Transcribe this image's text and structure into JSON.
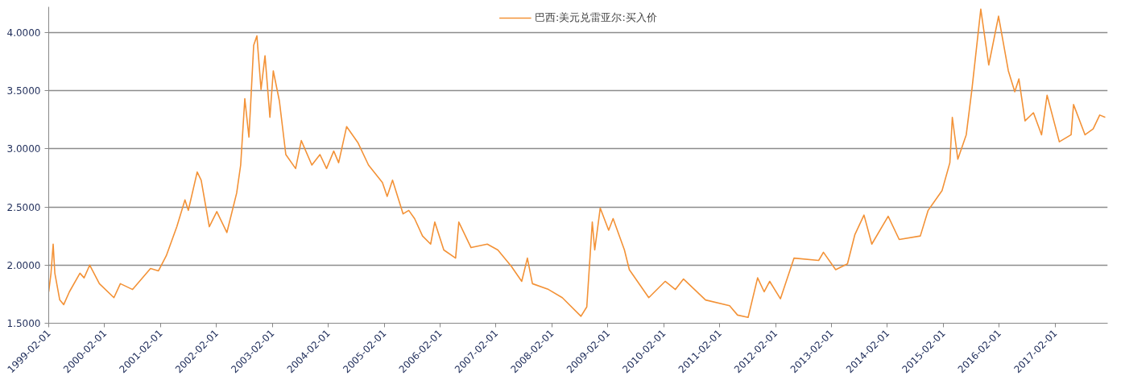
{
  "chart_data": {
    "type": "line",
    "x": [
      "1999-02-01",
      "1999-02-16",
      "1999-03-02",
      "1999-03-13",
      "1999-04-14",
      "1999-05-10",
      "1999-06-16",
      "1999-08-24",
      "1999-09-20",
      "1999-10-27",
      "1999-12-29",
      "2000-04-02",
      "2000-05-14",
      "2000-08-02",
      "2000-11-27",
      "2001-01-18",
      "2001-03-10",
      "2001-05-18",
      "2001-07-10",
      "2001-08-01",
      "2001-09-28",
      "2001-10-24",
      "2001-12-16",
      "2002-02-03",
      "2002-04-10",
      "2002-06-13",
      "2002-07-09",
      "2002-08-05",
      "2002-09-01",
      "2002-10-02",
      "2002-10-23",
      "2002-11-19",
      "2002-12-15",
      "2003-01-16",
      "2003-02-07",
      "2003-03-19",
      "2003-04-30",
      "2003-07-03",
      "2003-08-09",
      "2003-10-17",
      "2003-12-09",
      "2004-01-21",
      "2004-03-08",
      "2004-04-09",
      "2004-05-31",
      "2004-08-14",
      "2004-10-21",
      "2005-01-20",
      "2005-02-20",
      "2005-03-27",
      "2005-06-04",
      "2005-07-11",
      "2005-08-18",
      "2005-10-09",
      "2005-12-01",
      "2005-12-28",
      "2006-02-25",
      "2006-05-13",
      "2006-06-03",
      "2006-08-22",
      "2006-12-06",
      "2007-02-13",
      "2007-05-12",
      "2007-07-19",
      "2007-08-25",
      "2007-09-27",
      "2008-01-10",
      "2008-04-09",
      "2008-08-09",
      "2008-09-16",
      "2008-10-22",
      "2008-11-07",
      "2008-12-13",
      "2009-02-06",
      "2009-03-07",
      "2009-05-20",
      "2009-06-21",
      "2009-10-26",
      "2010-02-10",
      "2010-04-18",
      "2010-06-10",
      "2010-11-01",
      "2011-04-07",
      "2011-05-29",
      "2011-08-06",
      "2011-10-07",
      "2011-11-19",
      "2011-12-25",
      "2012-03-04",
      "2012-06-01",
      "2012-11-09",
      "2012-12-10",
      "2013-02-28",
      "2013-05-16",
      "2013-07-03",
      "2013-09-01",
      "2013-10-22",
      "2014-02-06",
      "2014-04-19",
      "2014-09-04",
      "2014-10-25",
      "2015-01-24",
      "2015-03-16",
      "2015-04-01",
      "2015-05-07",
      "2015-07-01",
      "2015-08-07",
      "2015-10-04",
      "2015-11-25",
      "2016-01-28",
      "2016-04-01",
      "2016-05-13",
      "2016-06-09",
      "2016-07-19",
      "2016-09-12",
      "2016-11-04",
      "2016-12-10",
      "2017-02-28",
      "2017-05-16",
      "2017-06-01",
      "2017-08-15",
      "2017-10-07",
      "2017-11-19",
      "2017-12-25"
    ],
    "series": [
      {
        "name": "巴西:美元兑雷亚尔:买入价",
        "color": "#f39237",
        "values": [
          1.77,
          1.93,
          2.18,
          1.93,
          1.7,
          1.66,
          1.77,
          1.93,
          1.89,
          2.0,
          1.84,
          1.72,
          1.84,
          1.79,
          1.97,
          1.95,
          2.08,
          2.33,
          2.56,
          2.47,
          2.8,
          2.73,
          2.33,
          2.46,
          2.28,
          2.62,
          2.86,
          3.43,
          3.1,
          3.89,
          3.97,
          3.51,
          3.8,
          3.27,
          3.67,
          3.41,
          2.95,
          2.83,
          3.07,
          2.86,
          2.95,
          2.83,
          2.98,
          2.88,
          3.19,
          3.05,
          2.86,
          2.71,
          2.59,
          2.73,
          2.44,
          2.47,
          2.4,
          2.25,
          2.18,
          2.37,
          2.13,
          2.06,
          2.37,
          2.15,
          2.18,
          2.13,
          1.99,
          1.86,
          2.06,
          1.84,
          1.79,
          1.72,
          1.56,
          1.64,
          2.37,
          2.13,
          2.49,
          2.3,
          2.4,
          2.13,
          1.96,
          1.72,
          1.86,
          1.79,
          1.88,
          1.7,
          1.65,
          1.57,
          1.55,
          1.89,
          1.77,
          1.86,
          1.71,
          2.06,
          2.04,
          2.11,
          1.96,
          2.01,
          2.26,
          2.43,
          2.18,
          2.42,
          2.22,
          2.25,
          2.47,
          2.64,
          2.88,
          3.27,
          2.91,
          3.12,
          3.51,
          4.2,
          3.72,
          4.14,
          3.67,
          3.49,
          3.6,
          3.24,
          3.31,
          3.12,
          3.46,
          3.06,
          3.12,
          3.38,
          3.12,
          3.17,
          3.29,
          3.27
        ]
      }
    ],
    "xlim": [
      "1999-02-01",
      "2018-01-10"
    ],
    "ylim": [
      1.5,
      4.22
    ],
    "xticks": [
      "1999-02-01",
      "2000-02-01",
      "2001-02-01",
      "2002-02-01",
      "2003-02-01",
      "2004-02-01",
      "2005-02-01",
      "2006-02-01",
      "2007-02-01",
      "2008-02-01",
      "2009-02-01",
      "2010-02-01",
      "2011-02-01",
      "2012-02-01",
      "2013-02-01",
      "2014-02-01",
      "2015-02-01",
      "2016-02-01",
      "2017-02-01"
    ],
    "yticks": [
      {
        "value": 1.5,
        "label": "1.5000"
      },
      {
        "value": 2.0,
        "label": "2.0000"
      },
      {
        "value": 2.5,
        "label": "2.5000"
      },
      {
        "value": 3.0,
        "label": "3.0000"
      },
      {
        "value": 3.5,
        "label": "3.5000"
      },
      {
        "value": 4.0,
        "label": "4.0000"
      }
    ],
    "grid": "y",
    "legend": "top",
    "marker": "none",
    "line_style": "solid"
  }
}
